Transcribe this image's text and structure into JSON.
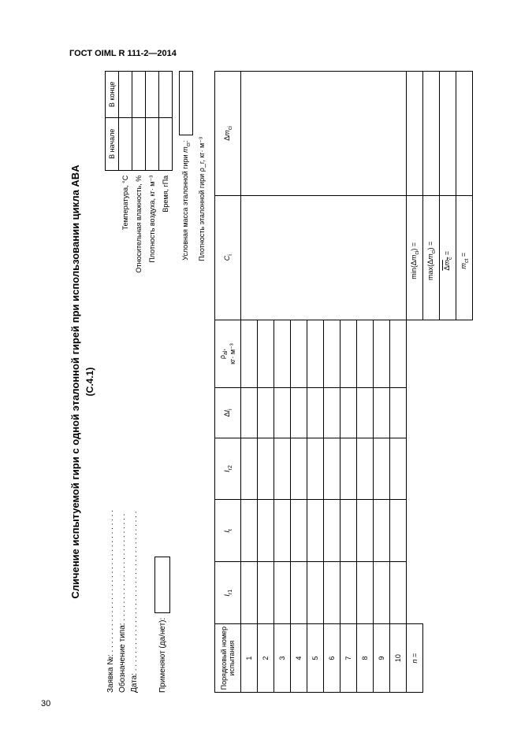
{
  "page": {
    "number": "30",
    "gost": "ГОСТ OIML R 111-2—2014"
  },
  "header": {
    "title": "Сличение испытуемой гири с одной эталонной гирей при использовании цикла ABA",
    "subtitle": "(C.4.1)"
  },
  "request": {
    "app_no_label": "Заявка №: . . . . . . . . . . . . . . . . . . . . . . . . . . . . . . . . .",
    "type_label": "Обозначение типа: . . . . . . . . . . . . . . . . . . . . . . . . .",
    "date_label": "Дата: . . . . . . . . . . . . . . . . . . . . . . . . . . . . . . . . . . . . .",
    "apply_label": "Применяют (да/нет):"
  },
  "conditions": {
    "c_start": "В начале",
    "c_end": "В конце",
    "rows": {
      "temp": "Температура, °С",
      "humidity": "Относительная влажность, %",
      "air_density": "Плотность воздуха, кг· м⁻³",
      "time": "Время, гПа"
    },
    "conv_mass": "Условная масса эталонной гири",
    "conv_mass_sym": "m_cr:",
    "density": "Плотность эталонной гири ρ_r, кг· м⁻³"
  },
  "table": {
    "col_idx": "Порядковый номер испытания",
    "col_i1": "I_r1",
    "col_i2": "I_t",
    "col_i3": "I_r2",
    "col_di": "ΔI_i",
    "col_rho_a": "ρ_al,",
    "col_rho_b": "кг· м⁻³",
    "col_c": "C_i",
    "col_dm": "Δm_ci",
    "rows": [
      "1",
      "2",
      "3",
      "4",
      "5",
      "6",
      "7",
      "8",
      "9",
      "10"
    ],
    "n_label": "n =",
    "min_label": "min(Δm_ci) =",
    "max_label": "max(Δm_ci) =",
    "avg_label": "Δm_c =",
    "mct_label": "m_ct ="
  }
}
